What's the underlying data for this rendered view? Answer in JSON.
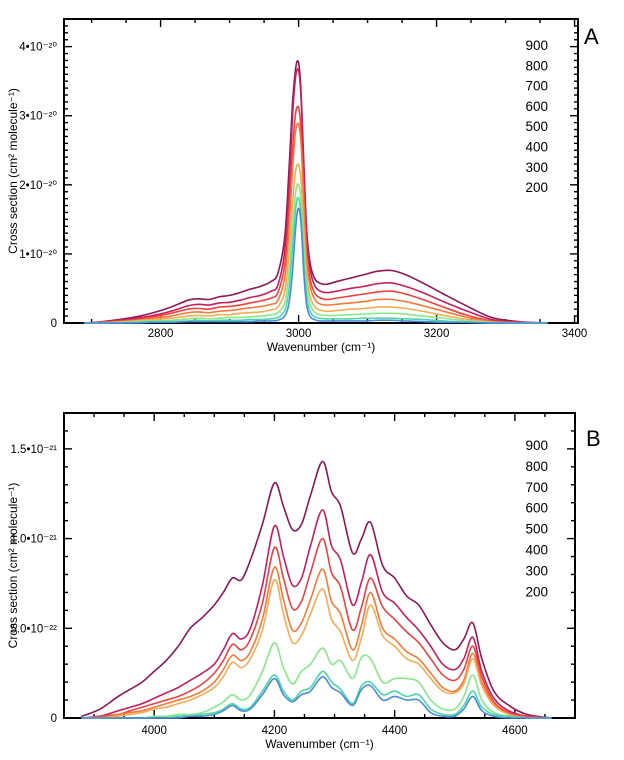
{
  "figure": {
    "description_panels": [
      "A",
      "B"
    ]
  },
  "chart_data": [
    {
      "type": "line",
      "panel_label": "A",
      "xlabel": "Wavenumber (cm⁻¹)",
      "ylabel": "Cross section (cm² molecule⁻¹)",
      "y_value_scale": "10⁻²⁰ cm² molecule⁻¹",
      "xlim": [
        2660,
        3405
      ],
      "ylim": [
        0,
        4.4
      ],
      "grid": false,
      "xticks": {
        "values": [
          2800,
          3000,
          3200,
          3400
        ],
        "labels": [
          "2800",
          "3000",
          "3200",
          "3400"
        ],
        "minor_step": 50
      },
      "yticks": {
        "values": [
          0,
          1,
          2,
          3,
          4
        ],
        "labels": [
          "0",
          "1•10⁻²⁰",
          "2•10⁻²⁰",
          "3•10⁻²⁰",
          "4•10⁻²⁰"
        ],
        "minor_step": 0.1
      },
      "legend": {
        "position": "top-right",
        "entries": [
          {
            "label": "900",
            "color": "#8E1659"
          },
          {
            "label": "800",
            "color": "#C81E5E"
          },
          {
            "label": "700",
            "color": "#EE4140"
          },
          {
            "label": "600",
            "color": "#F5793B"
          },
          {
            "label": "500",
            "color": "#FAAB52"
          },
          {
            "label": "400",
            "color": "#88E98A"
          },
          {
            "label": "300",
            "color": "#4CD8A5"
          },
          {
            "label": "200",
            "color": "#4A8BE0"
          }
        ]
      },
      "x": [
        2690,
        2715,
        2740,
        2765,
        2790,
        2815,
        2840,
        2855,
        2870,
        2885,
        2900,
        2915,
        2930,
        2945,
        2960,
        2970,
        2980,
        2986,
        2991,
        2995,
        2998,
        3001,
        3004,
        3008,
        3012,
        3017,
        3023,
        3030,
        3040,
        3055,
        3075,
        3095,
        3115,
        3135,
        3155,
        3180,
        3210,
        3245,
        3280,
        3320,
        3360
      ],
      "series": [
        {
          "name": "900",
          "color": "#8E1659",
          "values": [
            0.0,
            0.02,
            0.05,
            0.09,
            0.15,
            0.23,
            0.33,
            0.35,
            0.34,
            0.38,
            0.4,
            0.44,
            0.49,
            0.53,
            0.6,
            0.72,
            1.25,
            2.2,
            3.15,
            3.62,
            3.79,
            3.7,
            3.25,
            2.2,
            1.3,
            0.85,
            0.65,
            0.58,
            0.56,
            0.6,
            0.65,
            0.7,
            0.75,
            0.76,
            0.7,
            0.58,
            0.42,
            0.24,
            0.08,
            0.02,
            0.0
          ]
        },
        {
          "name": "800",
          "color": "#C81E5E",
          "values": [
            0.0,
            0.01,
            0.04,
            0.07,
            0.11,
            0.17,
            0.25,
            0.27,
            0.26,
            0.29,
            0.3,
            0.33,
            0.37,
            0.4,
            0.46,
            0.55,
            1.05,
            1.95,
            2.95,
            3.5,
            3.67,
            3.6,
            3.18,
            2.12,
            1.22,
            0.76,
            0.55,
            0.47,
            0.44,
            0.46,
            0.5,
            0.53,
            0.57,
            0.58,
            0.53,
            0.44,
            0.31,
            0.17,
            0.05,
            0.01,
            0.0
          ]
        },
        {
          "name": "700",
          "color": "#EE4140",
          "values": [
            0.0,
            0.01,
            0.03,
            0.05,
            0.09,
            0.14,
            0.2,
            0.21,
            0.2,
            0.23,
            0.24,
            0.26,
            0.29,
            0.32,
            0.36,
            0.44,
            0.85,
            1.62,
            2.48,
            2.98,
            3.13,
            3.07,
            2.72,
            1.8,
            1.0,
            0.62,
            0.44,
            0.37,
            0.34,
            0.36,
            0.39,
            0.42,
            0.45,
            0.46,
            0.42,
            0.34,
            0.23,
            0.11,
            0.03,
            0.01,
            0.0
          ]
        },
        {
          "name": "600",
          "color": "#F5793B",
          "values": [
            0.0,
            0.01,
            0.02,
            0.04,
            0.07,
            0.1,
            0.15,
            0.16,
            0.15,
            0.17,
            0.18,
            0.2,
            0.22,
            0.24,
            0.27,
            0.33,
            0.66,
            1.35,
            2.18,
            2.72,
            2.88,
            2.84,
            2.52,
            1.64,
            0.88,
            0.52,
            0.35,
            0.28,
            0.26,
            0.27,
            0.29,
            0.31,
            0.34,
            0.34,
            0.31,
            0.25,
            0.17,
            0.08,
            0.02,
            0.0,
            0.0
          ]
        },
        {
          "name": "500",
          "color": "#FAAB52",
          "values": [
            0.0,
            0.0,
            0.01,
            0.03,
            0.05,
            0.07,
            0.1,
            0.11,
            0.1,
            0.12,
            0.12,
            0.14,
            0.15,
            0.16,
            0.19,
            0.23,
            0.46,
            1.0,
            1.7,
            2.15,
            2.29,
            2.26,
            2.0,
            1.28,
            0.66,
            0.37,
            0.24,
            0.19,
            0.17,
            0.18,
            0.2,
            0.21,
            0.23,
            0.23,
            0.21,
            0.17,
            0.11,
            0.05,
            0.01,
            0.0,
            0.0
          ]
        },
        {
          "name": "400",
          "color": "#88E98A",
          "values": [
            0.0,
            0.0,
            0.01,
            0.02,
            0.03,
            0.04,
            0.06,
            0.07,
            0.06,
            0.07,
            0.08,
            0.08,
            0.09,
            0.1,
            0.12,
            0.15,
            0.3,
            0.72,
            1.35,
            1.83,
            2.0,
            1.97,
            1.73,
            1.05,
            0.5,
            0.26,
            0.16,
            0.12,
            0.11,
            0.11,
            0.12,
            0.13,
            0.14,
            0.14,
            0.13,
            0.1,
            0.07,
            0.03,
            0.01,
            0.0,
            0.0
          ]
        },
        {
          "name": "300",
          "color": "#4CD8A5",
          "values": [
            0.0,
            0.0,
            0.0,
            0.01,
            0.02,
            0.02,
            0.03,
            0.04,
            0.03,
            0.04,
            0.04,
            0.04,
            0.05,
            0.05,
            0.06,
            0.08,
            0.18,
            0.48,
            1.05,
            1.58,
            1.8,
            1.77,
            1.5,
            0.84,
            0.36,
            0.16,
            0.09,
            0.07,
            0.06,
            0.06,
            0.06,
            0.07,
            0.07,
            0.07,
            0.06,
            0.05,
            0.03,
            0.01,
            0.0,
            0.0,
            0.0
          ]
        },
        {
          "name": "200",
          "color": "#4A8BE0",
          "values": [
            0.0,
            0.0,
            0.0,
            0.0,
            0.01,
            0.01,
            0.02,
            0.02,
            0.02,
            0.02,
            0.02,
            0.02,
            0.02,
            0.03,
            0.03,
            0.04,
            0.1,
            0.28,
            0.72,
            1.28,
            1.6,
            1.64,
            1.38,
            0.66,
            0.24,
            0.09,
            0.05,
            0.03,
            0.03,
            0.03,
            0.03,
            0.03,
            0.04,
            0.04,
            0.03,
            0.02,
            0.01,
            0.01,
            0.0,
            0.0,
            0.0
          ]
        }
      ]
    },
    {
      "type": "line",
      "panel_label": "B",
      "xlabel": "Wavenumber (cm⁻¹)",
      "ylabel": "Cross section (cm² molecule⁻¹)",
      "y_value_scale": "10⁻²¹ cm² molecule⁻¹",
      "xlim": [
        3850,
        4700
      ],
      "ylim": [
        0,
        1.7
      ],
      "grid": false,
      "xticks": {
        "values": [
          4000,
          4200,
          4400,
          4600
        ],
        "labels": [
          "4000",
          "4200",
          "4400",
          "4600"
        ],
        "minor_step": 50
      },
      "yticks": {
        "values": [
          0,
          0.5,
          1.0,
          1.5
        ],
        "labels": [
          "0",
          "5.0•10⁻²²",
          "1.0•10⁻²¹",
          "1.5•10⁻²¹"
        ],
        "minor_step": 0.1
      },
      "legend": {
        "position": "top-right",
        "entries": [
          {
            "label": "900",
            "color": "#8E1659"
          },
          {
            "label": "800",
            "color": "#C81E5E"
          },
          {
            "label": "700",
            "color": "#EE4140"
          },
          {
            "label": "600",
            "color": "#F5793B"
          },
          {
            "label": "500",
            "color": "#FAAB52"
          },
          {
            "label": "400",
            "color": "#88E98A"
          },
          {
            "label": "300",
            "color": "#4CD8A5"
          },
          {
            "label": "200",
            "color": "#4A8BE0"
          }
        ]
      },
      "x": [
        3880,
        3910,
        3940,
        3960,
        3980,
        4000,
        4020,
        4040,
        4060,
        4080,
        4100,
        4115,
        4130,
        4145,
        4160,
        4180,
        4200,
        4215,
        4230,
        4245,
        4260,
        4280,
        4295,
        4310,
        4330,
        4345,
        4360,
        4380,
        4400,
        4420,
        4440,
        4460,
        4480,
        4500,
        4515,
        4530,
        4545,
        4565,
        4590,
        4620,
        4660
      ],
      "series": [
        {
          "name": "900",
          "color": "#8E1659",
          "values": [
            0.01,
            0.05,
            0.12,
            0.16,
            0.2,
            0.26,
            0.32,
            0.4,
            0.5,
            0.56,
            0.63,
            0.7,
            0.78,
            0.77,
            0.88,
            1.08,
            1.31,
            1.18,
            1.05,
            1.08,
            1.24,
            1.43,
            1.26,
            1.18,
            0.92,
            1.0,
            1.09,
            0.85,
            0.78,
            0.68,
            0.63,
            0.52,
            0.42,
            0.38,
            0.44,
            0.53,
            0.33,
            0.15,
            0.07,
            0.02,
            0.0
          ]
        },
        {
          "name": "800",
          "color": "#C81E5E",
          "values": [
            0.0,
            0.01,
            0.04,
            0.06,
            0.08,
            0.11,
            0.14,
            0.17,
            0.21,
            0.25,
            0.3,
            0.38,
            0.47,
            0.44,
            0.5,
            0.74,
            1.07,
            0.9,
            0.74,
            0.78,
            0.96,
            1.16,
            0.96,
            0.88,
            0.63,
            0.76,
            0.91,
            0.7,
            0.64,
            0.56,
            0.49,
            0.4,
            0.3,
            0.27,
            0.33,
            0.45,
            0.26,
            0.11,
            0.04,
            0.01,
            0.0
          ]
        },
        {
          "name": "700",
          "color": "#EE4140",
          "values": [
            0.0,
            0.01,
            0.02,
            0.04,
            0.06,
            0.08,
            0.1,
            0.12,
            0.15,
            0.19,
            0.25,
            0.32,
            0.41,
            0.38,
            0.44,
            0.64,
            0.95,
            0.78,
            0.61,
            0.65,
            0.81,
            1.0,
            0.81,
            0.73,
            0.49,
            0.62,
            0.78,
            0.62,
            0.55,
            0.48,
            0.42,
            0.33,
            0.24,
            0.21,
            0.27,
            0.4,
            0.23,
            0.09,
            0.03,
            0.01,
            0.0
          ]
        },
        {
          "name": "600",
          "color": "#F5793B",
          "values": [
            0.0,
            0.0,
            0.02,
            0.03,
            0.04,
            0.06,
            0.08,
            0.1,
            0.12,
            0.15,
            0.2,
            0.27,
            0.35,
            0.32,
            0.37,
            0.55,
            0.84,
            0.66,
            0.49,
            0.53,
            0.66,
            0.83,
            0.65,
            0.58,
            0.38,
            0.52,
            0.7,
            0.5,
            0.44,
            0.37,
            0.33,
            0.25,
            0.17,
            0.15,
            0.21,
            0.36,
            0.2,
            0.08,
            0.02,
            0.0,
            0.0
          ]
        },
        {
          "name": "500",
          "color": "#FAAB52",
          "values": [
            0.0,
            0.0,
            0.01,
            0.02,
            0.03,
            0.05,
            0.06,
            0.08,
            0.1,
            0.13,
            0.17,
            0.23,
            0.31,
            0.28,
            0.33,
            0.49,
            0.77,
            0.58,
            0.42,
            0.46,
            0.58,
            0.72,
            0.55,
            0.48,
            0.32,
            0.45,
            0.63,
            0.46,
            0.4,
            0.33,
            0.3,
            0.22,
            0.15,
            0.14,
            0.19,
            0.33,
            0.18,
            0.07,
            0.02,
            0.0,
            0.0
          ]
        },
        {
          "name": "400",
          "color": "#88E98A",
          "values": [
            0.0,
            0.0,
            0.0,
            0.0,
            0.0,
            0.01,
            0.01,
            0.02,
            0.02,
            0.03,
            0.06,
            0.09,
            0.13,
            0.1,
            0.13,
            0.26,
            0.42,
            0.28,
            0.19,
            0.26,
            0.3,
            0.39,
            0.3,
            0.32,
            0.22,
            0.34,
            0.33,
            0.2,
            0.22,
            0.22,
            0.2,
            0.1,
            0.05,
            0.05,
            0.12,
            0.24,
            0.1,
            0.03,
            0.01,
            0.0,
            0.0
          ]
        },
        {
          "name": "300",
          "color": "#4CD8A5",
          "values": [
            0.0,
            0.0,
            0.0,
            0.0,
            0.0,
            0.0,
            0.0,
            0.01,
            0.01,
            0.02,
            0.03,
            0.05,
            0.08,
            0.05,
            0.06,
            0.15,
            0.24,
            0.15,
            0.1,
            0.15,
            0.17,
            0.26,
            0.2,
            0.16,
            0.08,
            0.18,
            0.2,
            0.13,
            0.15,
            0.12,
            0.13,
            0.05,
            0.02,
            0.02,
            0.07,
            0.15,
            0.06,
            0.02,
            0.01,
            0.0,
            0.0
          ]
        },
        {
          "name": "200",
          "color": "#4A8BE0",
          "values": [
            0.0,
            0.0,
            0.0,
            0.0,
            0.0,
            0.0,
            0.0,
            0.0,
            0.01,
            0.01,
            0.02,
            0.04,
            0.07,
            0.04,
            0.05,
            0.13,
            0.22,
            0.13,
            0.09,
            0.13,
            0.15,
            0.23,
            0.17,
            0.14,
            0.07,
            0.16,
            0.18,
            0.1,
            0.12,
            0.1,
            0.1,
            0.03,
            0.01,
            0.01,
            0.05,
            0.12,
            0.04,
            0.01,
            0.0,
            0.0,
            0.0
          ]
        }
      ]
    }
  ]
}
